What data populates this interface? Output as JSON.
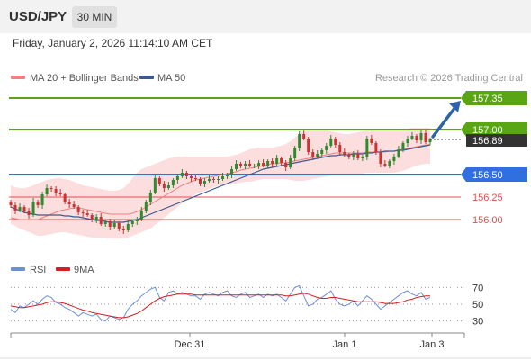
{
  "header": {
    "pair": "USD/JPY",
    "timeframe": "30 MIN",
    "datetime": "Friday, January 2, 2026 11:14:10 AM CET"
  },
  "legend": {
    "bollinger_label": "MA 20 + Bollinger Bands",
    "ma50_label": "MA 50",
    "copyright": "Research © 2026 Trading Central",
    "rsi_label": "RSI",
    "ma9_label": "9MA"
  },
  "colors": {
    "resistance": "#5aa514",
    "pivot": "#2f6fe0",
    "support": "#e05050",
    "up_candle": "#2e8b2e",
    "down_candle": "#d03030",
    "bollinger_fill": "#fbd3d3",
    "ma20": "#f08080",
    "ma50": "#3a5a90",
    "arrow": "#2f63a8",
    "rsi": "#6e8fd6",
    "rsi_ma9": "#d02020"
  },
  "chart_data": [
    {
      "type": "candlestick",
      "ylim": [
        155.72,
        157.48
      ],
      "x_ticks": [
        "Dec 31",
        "Jan 1",
        "Jan 3"
      ],
      "levels": [
        {
          "value": 157.35,
          "label": "157.35",
          "kind": "resistance"
        },
        {
          "value": 157.0,
          "label": "157.00",
          "kind": "resistance"
        },
        {
          "value": 156.5,
          "label": "156.50",
          "kind": "pivot"
        },
        {
          "value": 156.25,
          "label": "156.25",
          "kind": "support"
        },
        {
          "value": 156.0,
          "label": "156.00",
          "kind": "support"
        }
      ],
      "last_price": {
        "value": 156.89,
        "label": "156.89"
      },
      "target_arrow": {
        "from": 156.92,
        "to": 157.32
      },
      "close": [
        156.16,
        156.1,
        156.14,
        156.1,
        156.05,
        156.2,
        156.16,
        156.28,
        156.35,
        156.34,
        156.3,
        156.28,
        156.2,
        156.17,
        156.14,
        156.08,
        156.07,
        156.05,
        156.0,
        156.03,
        155.95,
        155.98,
        155.92,
        155.96,
        155.9,
        155.88,
        155.95,
        155.98,
        156.0,
        156.1,
        156.2,
        156.3,
        156.46,
        156.4,
        156.35,
        156.38,
        156.44,
        156.48,
        156.52,
        156.48,
        156.46,
        156.45,
        156.4,
        156.43,
        156.45,
        156.44,
        156.45,
        156.48,
        156.5,
        156.56,
        156.62,
        156.6,
        156.62,
        156.6,
        156.6,
        156.63,
        156.6,
        156.65,
        156.62,
        156.68,
        156.63,
        156.58,
        156.68,
        156.8,
        156.95,
        156.9,
        156.75,
        156.7,
        156.73,
        156.77,
        156.82,
        156.9,
        156.83,
        156.75,
        156.72,
        156.7,
        156.73,
        156.68,
        156.7,
        156.9,
        156.85,
        156.75,
        156.62,
        156.6,
        156.65,
        156.7,
        156.78,
        156.85,
        156.9,
        156.93,
        156.88,
        156.96,
        156.86,
        156.89
      ],
      "ma20": [
        156.02,
        156.01,
        156.0,
        156.0,
        156.0,
        156.0,
        156.0,
        156.02,
        156.04,
        156.06,
        156.08,
        156.1,
        156.11,
        156.12,
        156.13,
        156.13,
        156.12,
        156.11,
        156.1,
        156.09,
        156.08,
        156.07,
        156.06,
        156.06,
        156.06,
        156.06,
        156.06,
        156.07,
        156.09,
        156.11,
        156.14,
        156.17,
        156.2,
        156.23,
        156.26,
        156.29,
        156.32,
        156.35,
        156.38,
        156.4,
        156.42,
        156.44,
        156.45,
        156.46,
        156.47,
        156.48,
        156.49,
        156.5,
        156.51,
        156.52,
        156.53,
        156.55,
        156.56,
        156.57,
        156.58,
        156.59,
        156.6,
        156.61,
        156.62,
        156.62,
        156.63,
        156.63,
        156.64,
        156.65,
        156.66,
        156.67,
        156.68,
        156.69,
        156.7,
        156.71,
        156.72,
        156.73,
        156.74,
        156.74,
        156.74,
        156.74,
        156.74,
        156.74,
        156.74,
        156.75,
        156.75,
        156.75,
        156.75,
        156.75,
        156.76,
        156.76,
        156.77,
        156.78,
        156.79,
        156.8,
        156.81,
        156.82,
        156.83,
        156.83
      ],
      "bb_upper": [
        156.38,
        156.36,
        156.35,
        156.35,
        156.36,
        156.38,
        156.4,
        156.42,
        156.44,
        156.45,
        156.46,
        156.46,
        156.45,
        156.44,
        156.42,
        156.4,
        156.38,
        156.37,
        156.36,
        156.35,
        156.34,
        156.33,
        156.32,
        156.32,
        156.33,
        156.35,
        156.4,
        156.46,
        156.52,
        156.56,
        156.58,
        156.6,
        156.62,
        156.64,
        156.66,
        156.68,
        156.69,
        156.7,
        156.7,
        156.7,
        156.7,
        156.7,
        156.7,
        156.7,
        156.7,
        156.7,
        156.7,
        156.7,
        156.7,
        156.71,
        156.72,
        156.74,
        156.76,
        156.78,
        156.79,
        156.8,
        156.8,
        156.8,
        156.8,
        156.81,
        156.82,
        156.84,
        156.87,
        156.91,
        156.95,
        156.98,
        157.0,
        157.0,
        157.0,
        157.0,
        156.99,
        156.98,
        156.97,
        156.96,
        156.95,
        156.95,
        156.96,
        156.97,
        156.98,
        156.99,
        157.0,
        157.0,
        157.0,
        157.0,
        157.0,
        157.0,
        157.0,
        157.0,
        157.01,
        157.02,
        157.02,
        157.02,
        157.02,
        157.02
      ],
      "bb_lower": [
        155.95,
        155.93,
        155.9,
        155.88,
        155.86,
        155.84,
        155.82,
        155.82,
        155.83,
        155.84,
        155.85,
        155.86,
        155.86,
        155.85,
        155.84,
        155.83,
        155.82,
        155.81,
        155.8,
        155.8,
        155.8,
        155.8,
        155.79,
        155.79,
        155.79,
        155.79,
        155.8,
        155.82,
        155.84,
        155.86,
        155.88,
        155.9,
        155.94,
        155.98,
        156.02,
        156.06,
        156.1,
        156.14,
        156.18,
        156.22,
        156.26,
        156.28,
        156.3,
        156.32,
        156.34,
        156.36,
        156.37,
        156.38,
        156.39,
        156.4,
        156.4,
        156.41,
        156.42,
        156.42,
        156.43,
        156.44,
        156.45,
        156.45,
        156.45,
        156.45,
        156.45,
        156.45,
        156.44,
        156.43,
        156.43,
        156.43,
        156.44,
        156.45,
        156.46,
        156.47,
        156.48,
        156.49,
        156.5,
        156.51,
        156.51,
        156.51,
        156.51,
        156.51,
        156.51,
        156.52,
        156.52,
        156.52,
        156.52,
        156.52,
        156.52,
        156.52,
        156.53,
        156.54,
        156.56,
        156.58,
        156.6,
        156.61,
        156.62,
        156.62
      ],
      "ma50": [
        156.14,
        156.12,
        156.1,
        156.08,
        156.07,
        156.06,
        156.05,
        156.05,
        156.05,
        156.05,
        156.05,
        156.05,
        156.04,
        156.04,
        156.03,
        156.03,
        156.02,
        156.01,
        156.0,
        155.99,
        155.99,
        155.98,
        155.97,
        155.97,
        155.97,
        155.97,
        155.98,
        155.99,
        156.0,
        156.02,
        156.04,
        156.06,
        156.08,
        156.1,
        156.12,
        156.14,
        156.16,
        156.18,
        156.2,
        156.22,
        156.24,
        156.26,
        156.28,
        156.3,
        156.32,
        156.34,
        156.36,
        156.38,
        156.4,
        156.42,
        156.44,
        156.46,
        156.48,
        156.5,
        156.52,
        156.54,
        156.56,
        156.57,
        156.58,
        156.59,
        156.6,
        156.61,
        156.62,
        156.63,
        156.64,
        156.65,
        156.66,
        156.67,
        156.68,
        156.69,
        156.7,
        156.71,
        156.71,
        156.72,
        156.72,
        156.72,
        156.73,
        156.73,
        156.73,
        156.74,
        156.74,
        156.75,
        156.75,
        156.76,
        156.76,
        156.76,
        156.77,
        156.77,
        156.78,
        156.79,
        156.8,
        156.81,
        156.82,
        156.83
      ]
    },
    {
      "type": "line",
      "title": "RSI",
      "ylim": [
        20,
        80
      ],
      "y_ticks": [
        30,
        50,
        70
      ],
      "series": [
        {
          "name": "RSI",
          "values": [
            44,
            40,
            48,
            46,
            50,
            54,
            50,
            56,
            60,
            58,
            52,
            50,
            46,
            44,
            40,
            36,
            40,
            38,
            36,
            38,
            32,
            30,
            36,
            34,
            32,
            34,
            44,
            50,
            54,
            60,
            64,
            68,
            70,
            58,
            54,
            64,
            66,
            62,
            64,
            62,
            60,
            60,
            56,
            62,
            64,
            62,
            60,
            64,
            66,
            60,
            58,
            62,
            64,
            58,
            60,
            62,
            58,
            62,
            60,
            62,
            58,
            54,
            62,
            70,
            72,
            60,
            48,
            50,
            56,
            58,
            62,
            66,
            56,
            50,
            48,
            50,
            54,
            48,
            54,
            60,
            56,
            50,
            44,
            48,
            52,
            56,
            60,
            64,
            66,
            62,
            60,
            64,
            56,
            58
          ]
        },
        {
          "name": "9MA",
          "values": [
            48,
            47,
            46,
            46,
            47,
            48,
            49,
            50,
            52,
            53,
            53,
            52,
            51,
            49,
            47,
            45,
            43,
            42,
            40,
            39,
            38,
            37,
            36,
            35,
            34,
            34,
            35,
            37,
            39,
            42,
            46,
            50,
            54,
            57,
            59,
            60,
            61,
            62,
            62,
            62,
            62,
            61,
            61,
            61,
            61,
            61,
            61,
            61,
            61,
            61,
            61,
            61,
            61,
            61,
            61,
            61,
            61,
            61,
            61,
            61,
            61,
            60,
            60,
            61,
            62,
            63,
            62,
            60,
            58,
            57,
            57,
            58,
            58,
            57,
            56,
            55,
            54,
            53,
            53,
            53,
            53,
            53,
            52,
            51,
            51,
            51,
            52,
            53,
            55,
            56,
            58,
            59,
            60,
            60
          ]
        }
      ]
    }
  ]
}
